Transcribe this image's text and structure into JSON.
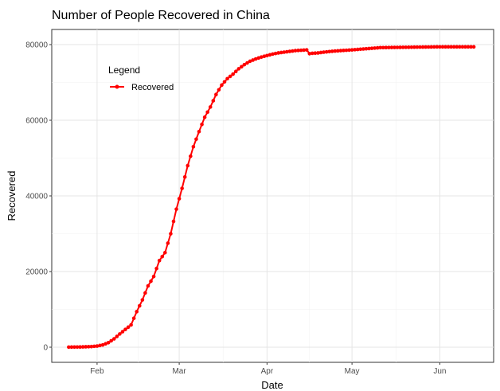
{
  "chart_data": {
    "type": "line",
    "title": "Number of People Recovered in China",
    "xlabel": "Date",
    "ylabel": "Recovered",
    "legend": {
      "title": "Legend",
      "placement": "top-left"
    },
    "grid": true,
    "y_ticks": [
      0,
      20000,
      40000,
      60000,
      80000
    ],
    "y_tick_labels": [
      "0",
      "20000",
      "40000",
      "60000",
      "80000"
    ],
    "ylim": [
      -4000,
      84000
    ],
    "x_ticks": [
      "2020-02-01",
      "2020-03-01",
      "2020-04-01",
      "2020-05-01",
      "2020-06-01"
    ],
    "x_tick_labels": [
      "Feb",
      "Mar",
      "Apr",
      "May",
      "Jun"
    ],
    "xlim": [
      "2020-01-16",
      "2020-06-20"
    ],
    "series": [
      {
        "name": "Recovered",
        "color": "#ff0000",
        "x": [
          "2020-01-22",
          "2020-01-24",
          "2020-01-26",
          "2020-01-28",
          "2020-01-30",
          "2020-02-01",
          "2020-02-03",
          "2020-02-05",
          "2020-02-07",
          "2020-02-09",
          "2020-02-11",
          "2020-02-13",
          "2020-02-15",
          "2020-02-17",
          "2020-02-19",
          "2020-02-21",
          "2020-02-23",
          "2020-02-25",
          "2020-02-27",
          "2020-02-29",
          "2020-03-02",
          "2020-03-04",
          "2020-03-06",
          "2020-03-08",
          "2020-03-10",
          "2020-03-12",
          "2020-03-14",
          "2020-03-16",
          "2020-03-18",
          "2020-03-20",
          "2020-03-22",
          "2020-03-24",
          "2020-03-26",
          "2020-03-28",
          "2020-03-30",
          "2020-04-01",
          "2020-04-03",
          "2020-04-05",
          "2020-04-07",
          "2020-04-09",
          "2020-04-11",
          "2020-04-13",
          "2020-04-15",
          "2020-04-16",
          "2020-04-17",
          "2020-04-19",
          "2020-04-21",
          "2020-04-25",
          "2020-05-01",
          "2020-05-06",
          "2020-05-11",
          "2020-05-21",
          "2020-05-31",
          "2020-06-13"
        ],
        "values": [
          28,
          40,
          60,
          110,
          170,
          300,
          600,
          1200,
          2200,
          3500,
          4700,
          5900,
          9400,
          12500,
          16200,
          18700,
          22900,
          25000,
          30000,
          36500,
          42000,
          48000,
          53000,
          57000,
          60800,
          63500,
          66800,
          69300,
          71000,
          72200,
          73600,
          74700,
          75600,
          76200,
          76700,
          77100,
          77500,
          77800,
          78000,
          78200,
          78400,
          78500,
          78600,
          77600,
          77700,
          77800,
          78000,
          78300,
          78600,
          78900,
          79200,
          79300,
          79400,
          79400
        ]
      }
    ]
  }
}
